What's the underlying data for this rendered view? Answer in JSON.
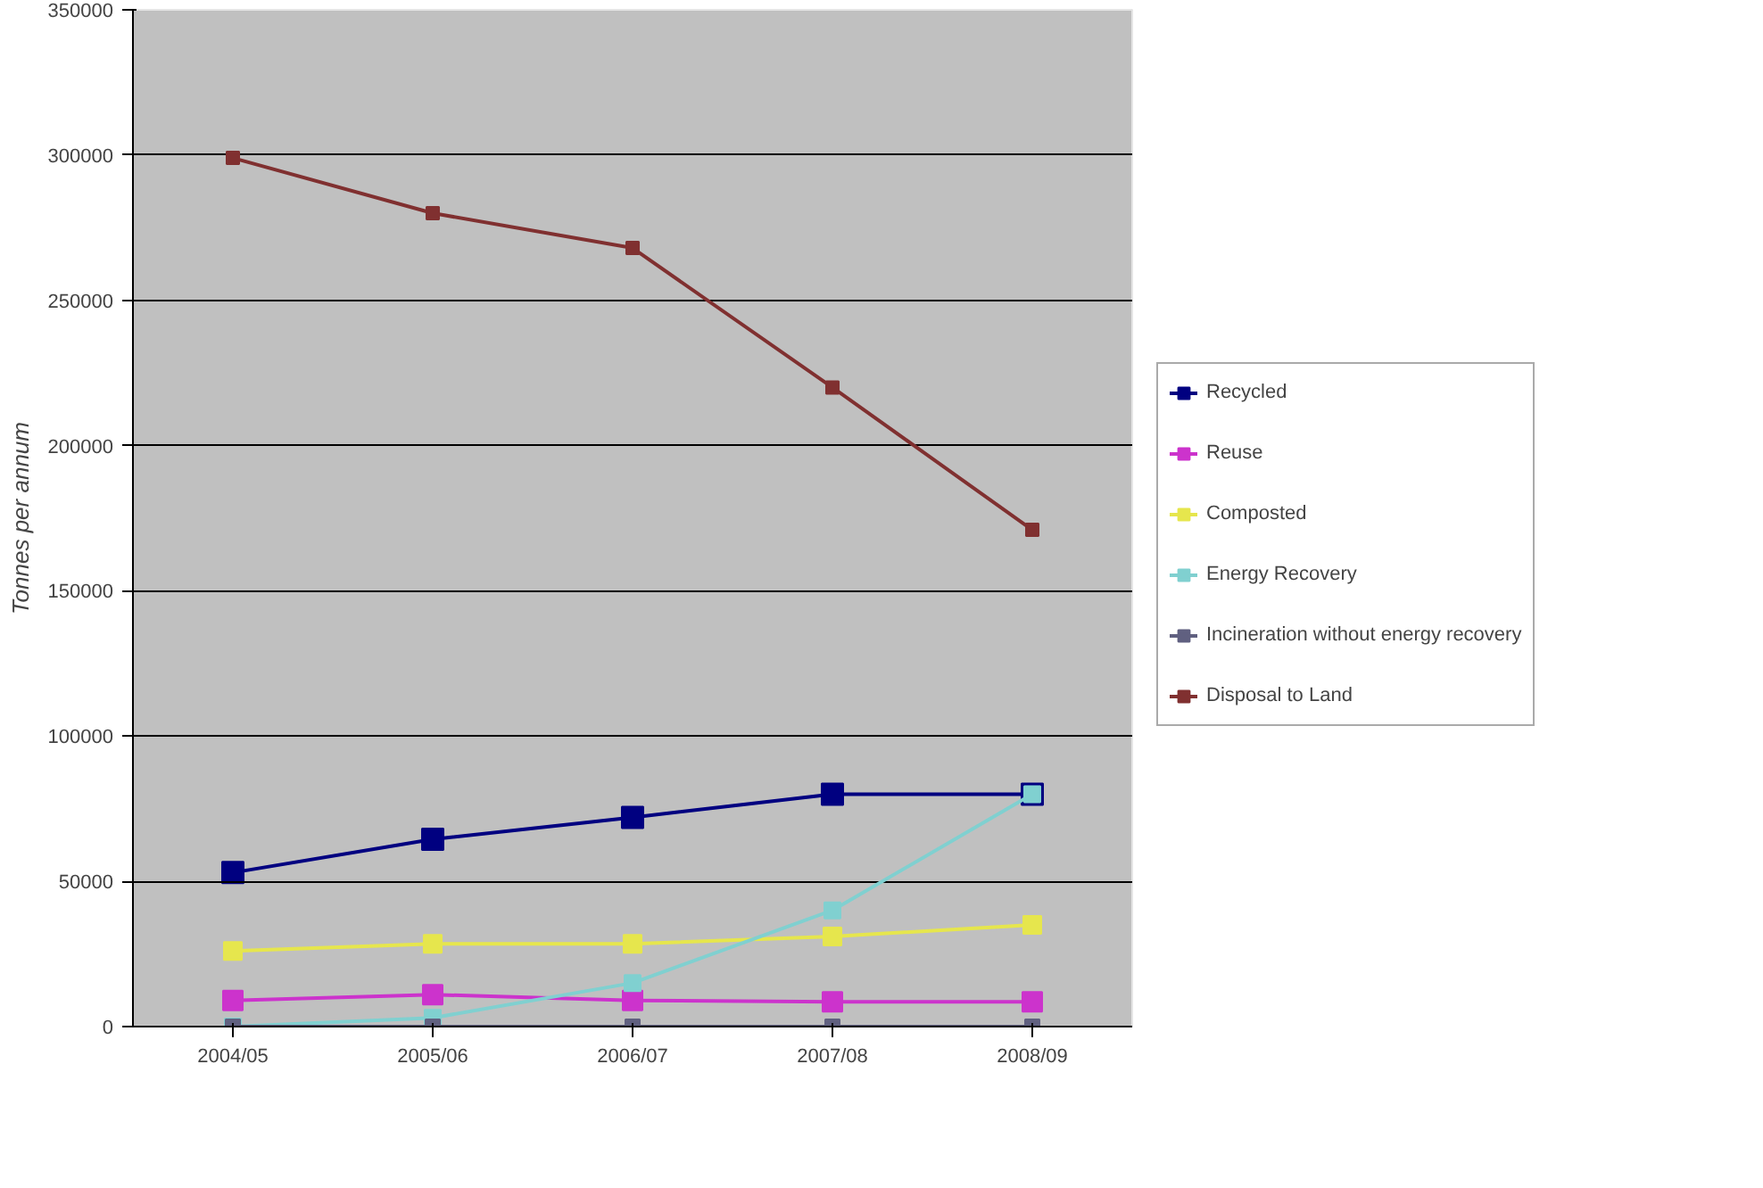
{
  "chart_data": {
    "type": "line",
    "ylabel": "Tonnes per annum",
    "categories": [
      "2004/05",
      "2005/06",
      "2006/07",
      "2007/08",
      "2008/09"
    ],
    "ylim": [
      0,
      350000
    ],
    "yticks": [
      0,
      50000,
      100000,
      150000,
      200000,
      250000,
      300000,
      350000
    ],
    "grid": "y",
    "legend": "right",
    "marker": "square",
    "series": [
      {
        "name": "Recycled",
        "color": "#000080",
        "values": [
          53000,
          64500,
          72000,
          80000,
          80000
        ]
      },
      {
        "name": "Reuse",
        "color": "#cc33cc",
        "values": [
          9000,
          11000,
          9000,
          8500,
          8500
        ]
      },
      {
        "name": "Composted",
        "color": "#e6e64d",
        "values": [
          26000,
          28500,
          28500,
          31000,
          35000
        ]
      },
      {
        "name": "Energy Recovery",
        "color": "#80d0d0",
        "values": [
          0,
          3000,
          15000,
          40000,
          80000
        ]
      },
      {
        "name": "Incineration without energy recovery",
        "color": "#606080",
        "values": [
          0,
          0,
          0,
          0,
          0
        ]
      },
      {
        "name": "Disposal to Land",
        "color": "#803030",
        "values": [
          299000,
          280000,
          268000,
          220000,
          171000
        ]
      }
    ]
  }
}
